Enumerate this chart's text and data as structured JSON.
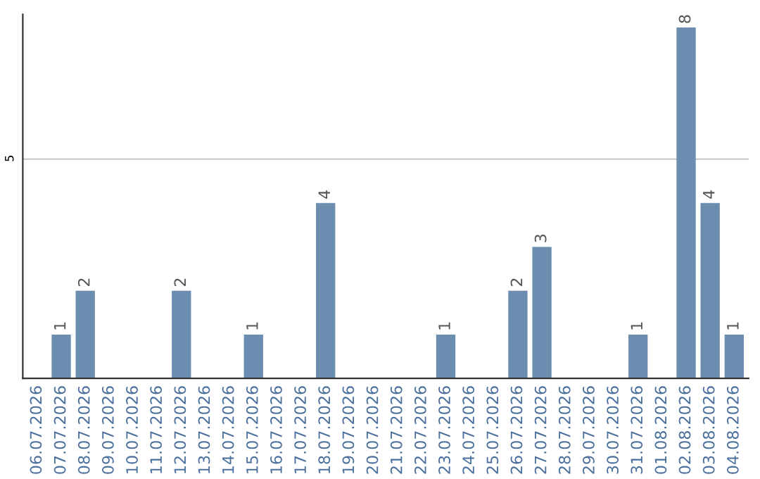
{
  "chart_data": {
    "type": "bar",
    "categories": [
      "06.07.2026",
      "07.07.2026",
      "08.07.2026",
      "09.07.2026",
      "10.07.2026",
      "11.07.2026",
      "12.07.2026",
      "13.07.2026",
      "14.07.2026",
      "15.07.2026",
      "16.07.2026",
      "17.07.2026",
      "18.07.2026",
      "19.07.2026",
      "20.07.2026",
      "21.07.2026",
      "22.07.2026",
      "23.07.2026",
      "24.07.2026",
      "25.07.2026",
      "26.07.2026",
      "27.07.2026",
      "28.07.2026",
      "29.07.2026",
      "30.07.2026",
      "31.07.2026",
      "01.08.2026",
      "02.08.2026",
      "03.08.2026",
      "04.08.2026"
    ],
    "values": [
      0,
      1,
      2,
      0,
      0,
      0,
      2,
      0,
      0,
      1,
      0,
      0,
      4,
      0,
      0,
      0,
      0,
      1,
      0,
      0,
      2,
      3,
      0,
      0,
      0,
      1,
      0,
      8,
      4,
      1
    ],
    "value_labels": [
      null,
      "1",
      "2",
      null,
      null,
      null,
      "2",
      null,
      null,
      "1",
      null,
      null,
      "4",
      null,
      null,
      null,
      null,
      "1",
      null,
      null,
      "2",
      "3",
      null,
      null,
      null,
      "1",
      null,
      "8",
      "4",
      "1"
    ],
    "color": "#6b8db0",
    "ylim": [
      0,
      8.3
    ],
    "yticks": [
      5
    ],
    "grid": "y"
  }
}
